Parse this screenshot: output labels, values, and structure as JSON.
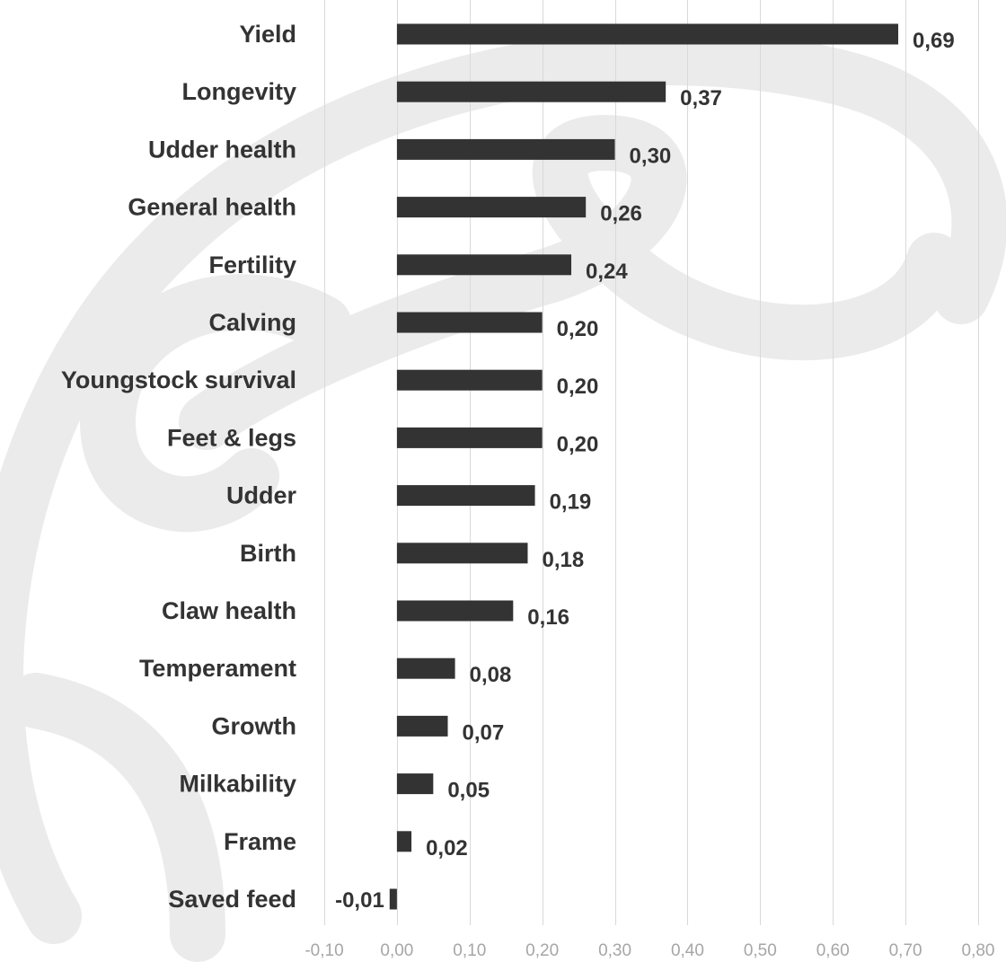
{
  "chart_data": {
    "type": "bar",
    "orientation": "horizontal",
    "categories": [
      "Yield",
      "Longevity",
      "Udder health",
      "General health",
      "Fertility",
      "Calving",
      "Youngstock survival",
      "Feet & legs",
      "Udder",
      "Birth",
      "Claw health",
      "Temperament",
      "Growth",
      "Milkability",
      "Frame",
      "Saved feed"
    ],
    "values": [
      0.69,
      0.37,
      0.3,
      0.26,
      0.24,
      0.2,
      0.2,
      0.2,
      0.19,
      0.18,
      0.16,
      0.08,
      0.07,
      0.05,
      0.02,
      -0.01
    ],
    "value_labels": [
      "0,69",
      "0,37",
      "0,30",
      "0,26",
      "0,24",
      "0,20",
      "0,20",
      "0,20",
      "0,19",
      "0,18",
      "0,16",
      "0,08",
      "0,07",
      "0,05",
      "0,02",
      "-0,01"
    ],
    "xlim": [
      -0.1,
      0.8
    ],
    "xticks": [
      -0.1,
      0.0,
      0.1,
      0.2,
      0.3,
      0.4,
      0.5,
      0.6,
      0.7,
      0.8
    ],
    "xtick_labels": [
      "-0,10",
      "0,00",
      "0,10",
      "0,20",
      "0,30",
      "0,40",
      "0,50",
      "0,60",
      "0,70",
      "0,80"
    ],
    "title": "",
    "xlabel": "",
    "ylabel": "",
    "grid": "vertical",
    "legend": "none"
  },
  "colors": {
    "bar": "#333333",
    "text": "#333333",
    "grid": "#d9d9d9",
    "tick_text": "#a6a6a6",
    "watermark": "#ebebeb"
  }
}
